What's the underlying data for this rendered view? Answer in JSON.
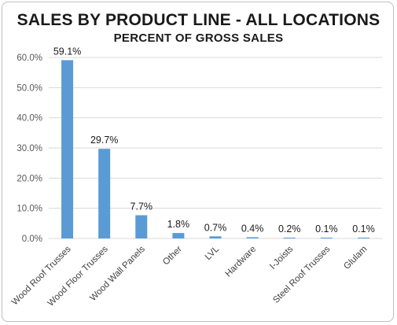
{
  "chart_data": {
    "type": "bar",
    "title": "SALES BY PRODUCT LINE - ALL LOCATIONS",
    "subtitle": "PERCENT OF GROSS SALES",
    "categories": [
      "Wood Roof Trusses",
      "Wood Floor Trusses",
      "Wood Wall Panels",
      "Other",
      "LVL",
      "Hardware",
      "I-Joists",
      "Steel Roof Trusses",
      "Glulam"
    ],
    "values": [
      59.1,
      29.7,
      7.7,
      1.8,
      0.7,
      0.4,
      0.2,
      0.1,
      0.1
    ],
    "data_labels": [
      "59.1%",
      "29.7%",
      "7.7%",
      "1.8%",
      "0.7%",
      "0.4%",
      "0.2%",
      "0.1%",
      "0.1%"
    ],
    "ylim": [
      0,
      60
    ],
    "yticks": [
      0,
      10,
      20,
      30,
      40,
      50,
      60
    ],
    "ytick_labels": [
      "0.0%",
      "10.0%",
      "20.0%",
      "30.0%",
      "40.0%",
      "50.0%",
      "60.0%"
    ],
    "grid": true,
    "legend": "none",
    "bar_color": "#5b9bd5",
    "grid_color": "#d9d9d9"
  }
}
